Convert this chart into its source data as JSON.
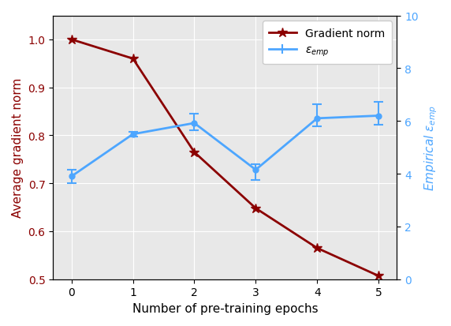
{
  "epochs": [
    0,
    1,
    2,
    3,
    4,
    5
  ],
  "grad_norm": [
    1.0,
    0.96,
    0.765,
    0.648,
    0.565,
    0.507
  ],
  "grad_color": "#8B0000",
  "eps_emp": [
    3.9,
    5.5,
    5.92,
    4.15,
    6.1,
    6.2
  ],
  "eps_emp_yerr_low": [
    0.25,
    0.08,
    0.28,
    0.38,
    0.3,
    0.35
  ],
  "eps_emp_yerr_high": [
    0.25,
    0.08,
    0.35,
    0.22,
    0.52,
    0.52
  ],
  "eps_color": "#4da6ff",
  "left_ylabel": "Average gradient norm",
  "right_ylabel": "Empirical $\\varepsilon_{emp}$",
  "xlabel": "Number of pre-training epochs",
  "legend_label_grad": "Gradient norm",
  "legend_label_eps": "$\\varepsilon_{emp}$",
  "ylim_left": [
    0.5,
    1.05
  ],
  "ylim_right": [
    0,
    10
  ],
  "yticks_left": [
    0.5,
    0.6,
    0.7,
    0.8,
    0.9,
    1.0
  ],
  "yticks_right": [
    0,
    2,
    4,
    6,
    8,
    10
  ],
  "bg_color": "#e8e8e8"
}
